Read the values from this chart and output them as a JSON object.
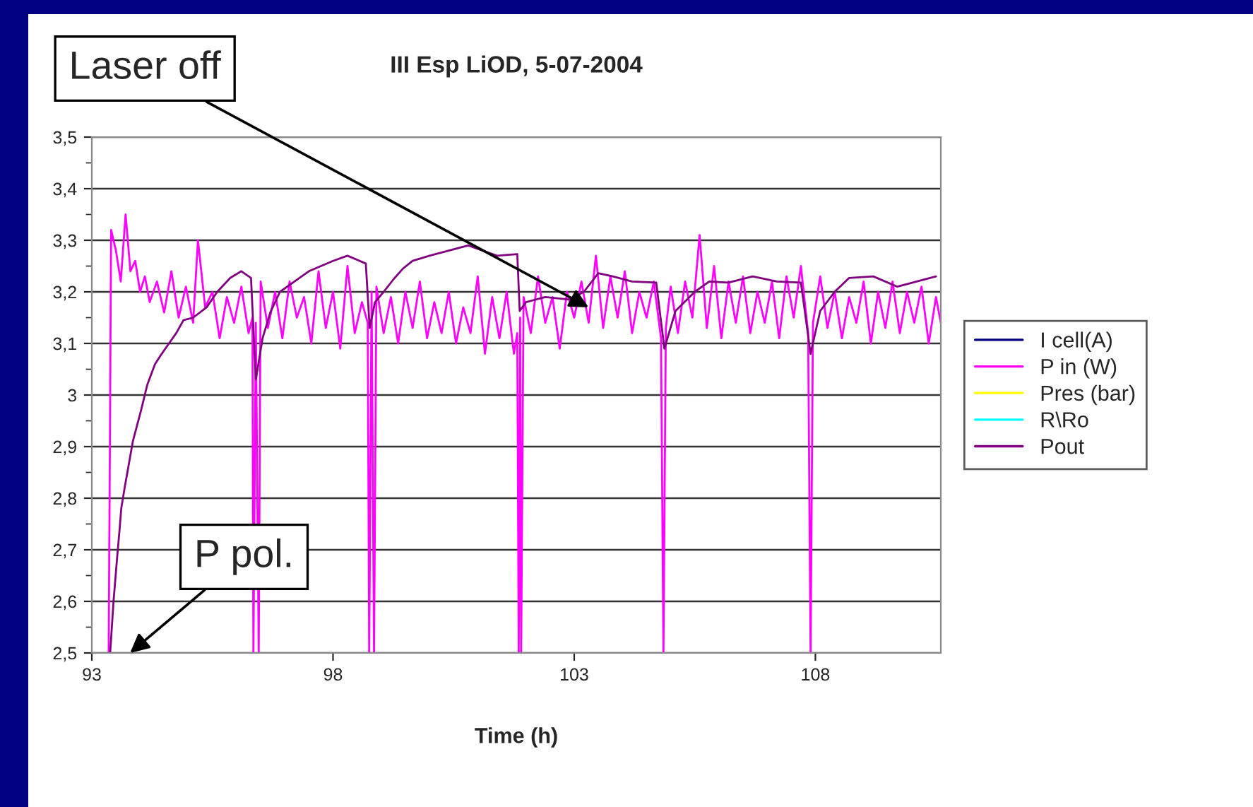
{
  "chart_data": {
    "type": "line",
    "title": "III Esp LiOD, 5-07-2004",
    "xlabel": "Time (h)",
    "xlim": [
      93,
      110.6
    ],
    "xticks": [
      93,
      98,
      103,
      108
    ],
    "ylim": [
      2.5,
      3.5
    ],
    "yticks": [
      {
        "value": 2.5,
        "label": "2,5"
      },
      {
        "value": 2.6,
        "label": "2,6"
      },
      {
        "value": 2.7,
        "label": "2,7"
      },
      {
        "value": 2.8,
        "label": "2,8"
      },
      {
        "value": 2.9,
        "label": "2,9"
      },
      3,
      {
        "value": 3.1,
        "label": "3,1"
      },
      {
        "value": 3.2,
        "label": "3,2"
      },
      {
        "value": 3.3,
        "label": "3,3"
      },
      {
        "value": 3.4,
        "label": "3,4"
      },
      {
        "value": 3.5,
        "label": "3,5"
      }
    ],
    "grid": "y",
    "legend": "right",
    "marker": "none",
    "line_style": "solid",
    "annotations": [
      {
        "text": "Laser off",
        "x": 103.3,
        "y": 3.17
      },
      "P pol."
    ],
    "series": [
      {
        "name": "I cell(A)",
        "color": "#000080"
      },
      {
        "name": "P in (W)",
        "color": "#ff00ff",
        "x": [
          93.35,
          93.4,
          93.5,
          93.6,
          93.7,
          93.8,
          93.9,
          94.0,
          94.1,
          94.2,
          94.35,
          94.5,
          94.65,
          94.8,
          94.95,
          95.1,
          95.2,
          95.35,
          95.5,
          95.65,
          95.8,
          95.95,
          96.1,
          96.25,
          96.33,
          96.35,
          96.4,
          96.46,
          96.5,
          96.65,
          96.8,
          96.95,
          97.1,
          97.25,
          97.4,
          97.55,
          97.7,
          97.85,
          98.0,
          98.15,
          98.3,
          98.45,
          98.6,
          98.72,
          98.75,
          98.8,
          98.85,
          98.9,
          99.05,
          99.2,
          99.35,
          99.5,
          99.65,
          99.8,
          99.95,
          100.1,
          100.25,
          100.4,
          100.55,
          100.7,
          100.85,
          101.0,
          101.15,
          101.3,
          101.45,
          101.6,
          101.75,
          101.82,
          101.85,
          101.88,
          101.9,
          101.95,
          102.1,
          102.25,
          102.4,
          102.55,
          102.7,
          102.85,
          103.0,
          103.15,
          103.3,
          103.45,
          103.6,
          103.75,
          103.9,
          104.05,
          104.2,
          104.35,
          104.5,
          104.65,
          104.8,
          104.85,
          104.9,
          105.0,
          105.15,
          105.3,
          105.45,
          105.6,
          105.75,
          105.9,
          106.05,
          106.2,
          106.35,
          106.5,
          106.65,
          106.8,
          106.95,
          107.1,
          107.25,
          107.4,
          107.55,
          107.7,
          107.85,
          107.9,
          107.95,
          108.1,
          108.25,
          108.4,
          108.55,
          108.7,
          108.85,
          109.0,
          109.15,
          109.3,
          109.45,
          109.6,
          109.75,
          109.9,
          110.05,
          110.2,
          110.35,
          110.5,
          110.6
        ],
        "values": [
          2.5,
          3.32,
          3.28,
          3.22,
          3.35,
          3.24,
          3.26,
          3.2,
          3.23,
          3.18,
          3.22,
          3.16,
          3.24,
          3.15,
          3.21,
          3.14,
          3.3,
          3.17,
          3.2,
          3.11,
          3.19,
          3.14,
          3.21,
          3.12,
          3.15,
          2.5,
          3.14,
          2.5,
          3.22,
          3.13,
          3.2,
          3.11,
          3.22,
          3.15,
          3.19,
          3.1,
          3.24,
          3.13,
          3.2,
          3.09,
          3.25,
          3.12,
          3.18,
          3.14,
          2.5,
          3.2,
          2.5,
          3.21,
          3.12,
          3.19,
          3.1,
          3.2,
          3.13,
          3.22,
          3.11,
          3.18,
          3.12,
          3.2,
          3.1,
          3.17,
          3.12,
          3.23,
          3.08,
          3.19,
          3.11,
          3.2,
          3.08,
          3.12,
          2.5,
          3.15,
          2.5,
          3.19,
          3.12,
          3.23,
          3.14,
          3.19,
          3.09,
          3.2,
          3.15,
          3.22,
          3.14,
          3.27,
          3.13,
          3.23,
          3.15,
          3.24,
          3.12,
          3.2,
          3.15,
          3.22,
          3.11,
          2.5,
          3.13,
          3.21,
          3.12,
          3.22,
          3.15,
          3.31,
          3.13,
          3.25,
          3.11,
          3.22,
          3.14,
          3.23,
          3.12,
          3.2,
          3.14,
          3.22,
          3.11,
          3.23,
          3.15,
          3.25,
          3.12,
          2.5,
          3.14,
          3.23,
          3.13,
          3.2,
          3.11,
          3.19,
          3.14,
          3.22,
          3.1,
          3.2,
          3.13,
          3.22,
          3.12,
          3.2,
          3.14,
          3.21,
          3.1,
          3.19,
          3.14
        ]
      },
      {
        "name": "Pres (bar)",
        "color": "#ffff00"
      },
      {
        "name": "R\\Ro",
        "color": "#00ffff"
      },
      {
        "name": "Pout",
        "color": "#800080",
        "x": [
          93.38,
          93.45,
          93.52,
          93.58,
          93.61,
          93.68,
          93.75,
          93.85,
          94.02,
          94.15,
          94.31,
          94.45,
          94.6,
          94.75,
          94.9,
          95.1,
          95.38,
          95.6,
          95.87,
          96.1,
          96.3,
          96.4,
          96.54,
          96.7,
          96.9,
          97.2,
          97.5,
          97.75,
          98.0,
          98.3,
          98.68,
          98.76,
          98.87,
          99.05,
          99.26,
          99.45,
          99.65,
          100.0,
          100.4,
          100.8,
          101.1,
          101.4,
          101.82,
          101.87,
          102.0,
          102.4,
          102.9,
          103.2,
          103.5,
          103.8,
          104.2,
          104.7,
          104.87,
          105.1,
          105.5,
          105.8,
          106.2,
          106.7,
          107.2,
          107.7,
          107.9,
          108.1,
          108.4,
          108.7,
          109.2,
          109.7,
          110.1,
          110.5
        ],
        "values": [
          2.5,
          2.6,
          2.68,
          2.744,
          2.78,
          2.82,
          2.857,
          2.91,
          2.97,
          3.02,
          3.06,
          3.08,
          3.1,
          3.12,
          3.145,
          3.15,
          3.17,
          3.2,
          3.227,
          3.24,
          3.227,
          3.03,
          3.11,
          3.16,
          3.2,
          3.22,
          3.24,
          3.25,
          3.26,
          3.27,
          3.255,
          3.13,
          3.18,
          3.2,
          3.225,
          3.245,
          3.26,
          3.27,
          3.28,
          3.29,
          3.28,
          3.27,
          3.273,
          3.163,
          3.18,
          3.19,
          3.185,
          3.2,
          3.236,
          3.23,
          3.22,
          3.218,
          3.09,
          3.163,
          3.2,
          3.22,
          3.218,
          3.23,
          3.22,
          3.218,
          3.08,
          3.163,
          3.2,
          3.227,
          3.23,
          3.21,
          3.22,
          3.23
        ]
      }
    ]
  }
}
